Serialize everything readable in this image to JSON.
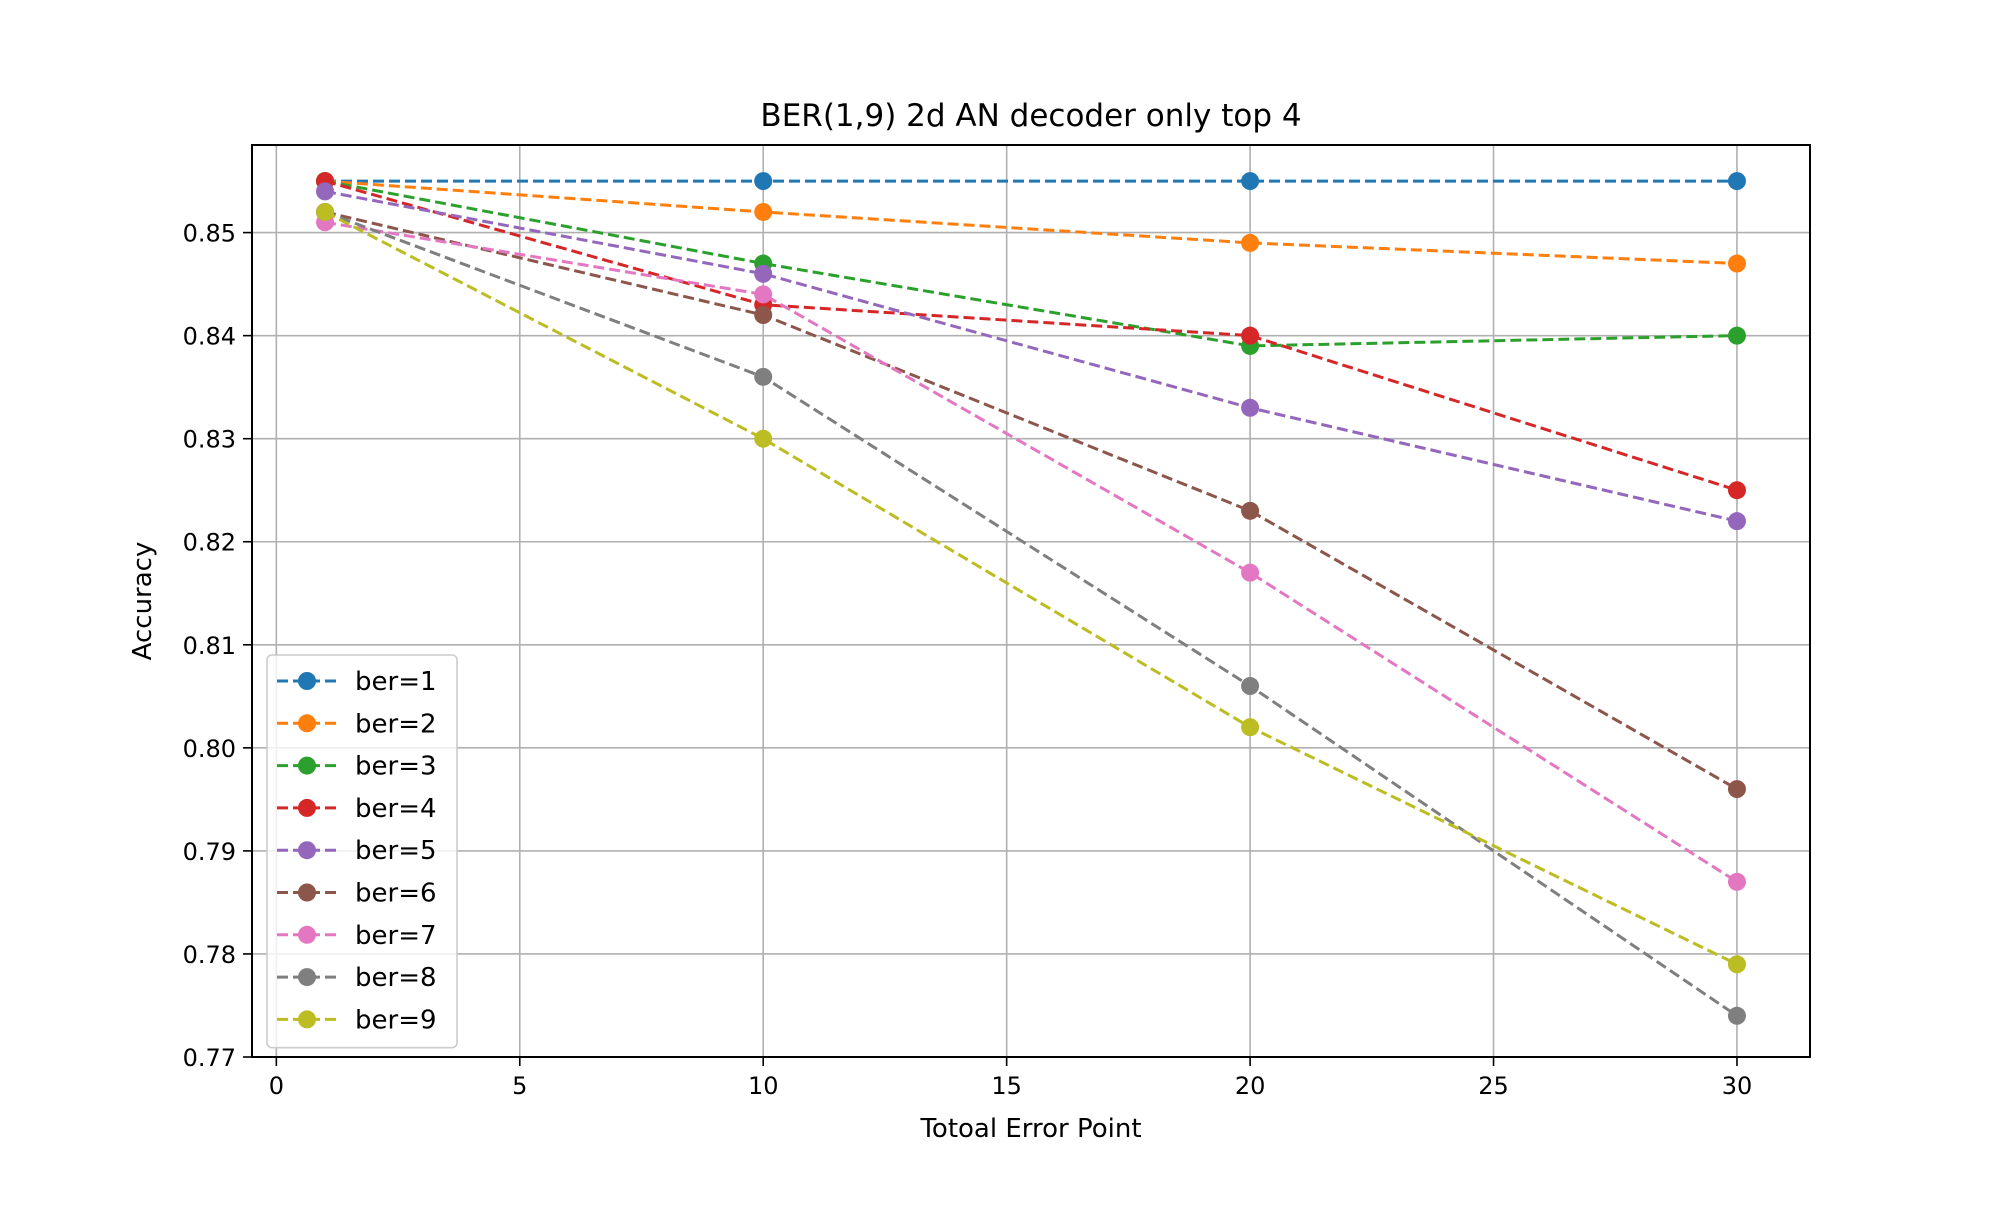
{
  "chart_data": {
    "type": "line",
    "title": "BER(1,9) 2d AN decoder only top 4",
    "xlabel": "Totoal Error Point",
    "ylabel": "Accuracy",
    "xlim": [
      -0.5,
      31.5
    ],
    "ylim": [
      0.77,
      0.8585
    ],
    "x_ticks": [
      0,
      5,
      10,
      15,
      20,
      25,
      30
    ],
    "x_tick_labels": [
      "0",
      "5",
      "10",
      "15",
      "20",
      "25",
      "30"
    ],
    "y_ticks": [
      0.77,
      0.78,
      0.79,
      0.8,
      0.81,
      0.82,
      0.83,
      0.84,
      0.85
    ],
    "y_tick_labels": [
      "0.77",
      "0.78",
      "0.79",
      "0.80",
      "0.81",
      "0.82",
      "0.83",
      "0.84",
      "0.85"
    ],
    "grid": true,
    "legend_position": "lower-left",
    "line_style": "dashed",
    "marker": "circle",
    "x": [
      1,
      10,
      20,
      30
    ],
    "series": [
      {
        "name": "ber=1",
        "color": "#1f77b4",
        "values": [
          0.855,
          0.855,
          0.855,
          0.855
        ]
      },
      {
        "name": "ber=2",
        "color": "#ff7f0e",
        "values": [
          0.855,
          0.852,
          0.849,
          0.847
        ]
      },
      {
        "name": "ber=3",
        "color": "#2ca02c",
        "values": [
          0.855,
          0.847,
          0.839,
          0.84
        ]
      },
      {
        "name": "ber=4",
        "color": "#d62728",
        "values": [
          0.855,
          0.843,
          0.84,
          0.825
        ]
      },
      {
        "name": "ber=5",
        "color": "#9467bd",
        "values": [
          0.854,
          0.846,
          0.833,
          0.822
        ]
      },
      {
        "name": "ber=6",
        "color": "#8c564b",
        "values": [
          0.852,
          0.842,
          0.823,
          0.796
        ]
      },
      {
        "name": "ber=7",
        "color": "#e377c2",
        "values": [
          0.851,
          0.844,
          0.817,
          0.787
        ]
      },
      {
        "name": "ber=8",
        "color": "#7f7f7f",
        "values": [
          0.852,
          0.836,
          0.806,
          0.774
        ]
      },
      {
        "name": "ber=9",
        "color": "#bcbd22",
        "values": [
          0.852,
          0.83,
          0.802,
          0.779
        ]
      }
    ]
  }
}
